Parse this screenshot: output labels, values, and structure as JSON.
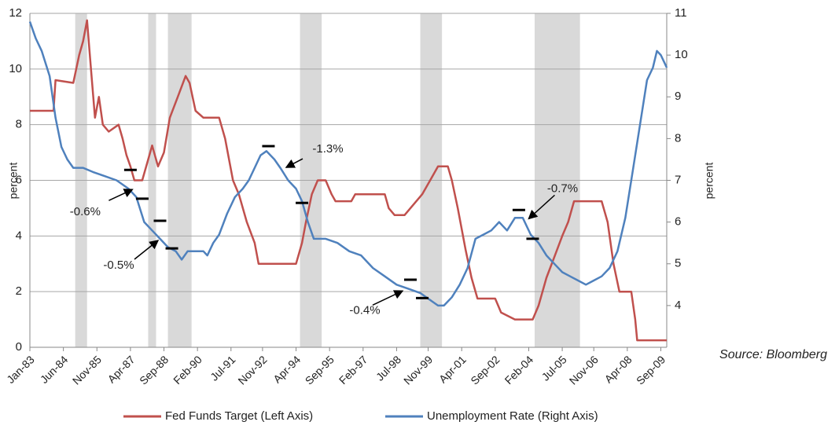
{
  "chart_data": {
    "type": "line",
    "ylabel": "percent",
    "y2label": "percent",
    "source": "Source: Bloomberg",
    "xlim": [
      "Jan-83",
      "Dec-09"
    ],
    "xticks": [
      "Jan-83",
      "Jun-84",
      "Nov-85",
      "Apr-87",
      "Sep-88",
      "Feb-90",
      "Jul-91",
      "Nov-92",
      "Apr-94",
      "Sep-95",
      "Feb-97",
      "Jul-98",
      "Nov-99",
      "Apr-01",
      "Sep-02",
      "Feb-04",
      "Jul-05",
      "Nov-06",
      "Apr-08",
      "Sep-09"
    ],
    "ylim": [
      0,
      12
    ],
    "yticks": [
      0,
      2,
      4,
      6,
      8,
      10,
      12
    ],
    "y2lim": [
      3,
      11
    ],
    "y2ticks": [
      4,
      5,
      6,
      7,
      8,
      9,
      10,
      11
    ],
    "grid": true,
    "shade_color": "#d9d9d9",
    "shaded_periods": [
      {
        "start": "Dec-84",
        "end": "Jun-85"
      },
      {
        "start": "Jan-88",
        "end": "May-88"
      },
      {
        "start": "Nov-88",
        "end": "Nov-89"
      },
      {
        "start": "Jun-94",
        "end": "May-95"
      },
      {
        "start": "Jul-99",
        "end": "Jun-00"
      },
      {
        "start": "May-04",
        "end": "Apr-06"
      }
    ],
    "series": [
      {
        "name": "Fed Funds Target (Left Axis)",
        "color": "#c0504d",
        "axis": "y",
        "x": [
          "Jan-83",
          "Jan-84",
          "Feb-84",
          "Nov-84",
          "Feb-85",
          "Apr-85",
          "Jun-85",
          "Aug-85",
          "Oct-85",
          "Dec-85",
          "Feb-86",
          "May-86",
          "Oct-86",
          "Dec-86",
          "Feb-87",
          "Apr-87",
          "Jun-87",
          "Oct-87",
          "Jan-88",
          "Mar-88",
          "Jun-88",
          "Sep-88",
          "Dec-88",
          "Apr-89",
          "Aug-89",
          "Oct-89",
          "Jan-90",
          "May-90",
          "Jan-91",
          "Apr-91",
          "Aug-91",
          "Nov-91",
          "Mar-92",
          "Jul-92",
          "Sep-92",
          "Dec-92",
          "Apr-94",
          "Jul-94",
          "Sep-94",
          "Dec-94",
          "Mar-95",
          "Jul-95",
          "Oct-95",
          "Dec-95",
          "Aug-96",
          "Oct-96",
          "Jan-98",
          "Mar-98",
          "Jun-98",
          "Nov-98",
          "Feb-99",
          "May-99",
          "Aug-99",
          "Dec-99",
          "Apr-00",
          "Sep-00",
          "Nov-00",
          "Feb-01",
          "Jun-01",
          "Sep-01",
          "Dec-01",
          "Sep-02",
          "Dec-02",
          "Jul-03",
          "Apr-04",
          "Jul-04",
          "Nov-04",
          "Mar-05",
          "Jul-05",
          "Oct-05",
          "Jan-06",
          "Mar-07",
          "Jun-07",
          "Sep-07",
          "Dec-07",
          "Jun-08",
          "Aug-08",
          "Sep-08",
          "Dec-09"
        ],
        "values": [
          8.5,
          8.5,
          9.6,
          9.5,
          10.5,
          11,
          11.75,
          10,
          8.25,
          9,
          8,
          7.75,
          8,
          7.5,
          6.9,
          6.5,
          6,
          6,
          6.75,
          7.25,
          6.5,
          7,
          8.25,
          9,
          9.75,
          9.5,
          8.5,
          8.25,
          8.25,
          7.5,
          6,
          5.5,
          4.5,
          3.75,
          3,
          3,
          3,
          3.75,
          4.5,
          5.5,
          6,
          6,
          5.5,
          5.25,
          5.25,
          5.5,
          5.5,
          5,
          4.75,
          4.75,
          5,
          5.25,
          5.5,
          6,
          6.5,
          6.5,
          6,
          5,
          3.5,
          2.5,
          1.75,
          1.75,
          1.25,
          1,
          1,
          1.5,
          2.5,
          3.25,
          4,
          4.5,
          5.25,
          5.25,
          4.5,
          3,
          2,
          2,
          1,
          0.25,
          0.25
        ]
      },
      {
        "name": "Unemployment Rate (Right Axis)",
        "color": "#4f81bd",
        "axis": "y2",
        "x": [
          "Jan-83",
          "Apr-83",
          "Jul-83",
          "Nov-83",
          "Feb-84",
          "May-84",
          "Aug-84",
          "Nov-84",
          "Apr-85",
          "Sep-85",
          "Mar-86",
          "Sep-86",
          "Mar-87",
          "Jul-87",
          "Nov-87",
          "Mar-88",
          "Jul-88",
          "Nov-88",
          "Mar-89",
          "Jun-89",
          "Sep-89",
          "Jan-90",
          "May-90",
          "Jul-90",
          "Oct-90",
          "Jan-91",
          "May-91",
          "Sep-91",
          "Jan-92",
          "Apr-92",
          "Jul-92",
          "Oct-92",
          "Jan-93",
          "May-93",
          "Aug-93",
          "Dec-93",
          "Apr-94",
          "Jul-94",
          "Oct-94",
          "Jan-95",
          "Apr-95",
          "Jul-95",
          "Jan-96",
          "Jul-96",
          "Jan-97",
          "Jul-97",
          "Jan-98",
          "Jul-98",
          "Jan-99",
          "Jul-99",
          "Jan-00",
          "Apr-00",
          "Jul-00",
          "Nov-00",
          "Mar-01",
          "Jul-01",
          "Nov-01",
          "Mar-02",
          "Jul-02",
          "Nov-02",
          "Mar-03",
          "Jul-03",
          "Nov-03",
          "Mar-04",
          "Jul-04",
          "Nov-04",
          "Mar-05",
          "Jul-05",
          "Nov-05",
          "Mar-06",
          "Jul-06",
          "Nov-06",
          "Mar-07",
          "Jul-07",
          "Nov-07",
          "Mar-08",
          "Jul-08",
          "Nov-08",
          "Feb-09",
          "May-09",
          "Jul-09",
          "Sep-09",
          "Nov-09",
          "Dec-09"
        ],
        "values": [
          10.8,
          10.4,
          10.1,
          9.5,
          8.5,
          7.8,
          7.5,
          7.3,
          7.3,
          7.2,
          7.1,
          7,
          6.8,
          6.6,
          6,
          5.8,
          5.6,
          5.4,
          5.3,
          5.1,
          5.3,
          5.3,
          5.3,
          5.2,
          5.5,
          5.7,
          6.2,
          6.6,
          6.8,
          7,
          7.3,
          7.6,
          7.7,
          7.5,
          7.3,
          7,
          6.8,
          6.5,
          6,
          5.6,
          5.6,
          5.6,
          5.5,
          5.3,
          5.2,
          4.9,
          4.7,
          4.5,
          4.4,
          4.3,
          4.1,
          4,
          4,
          4.2,
          4.5,
          4.9,
          5.6,
          5.7,
          5.8,
          6,
          5.8,
          6.1,
          6.1,
          5.7,
          5.5,
          5.2,
          5,
          4.8,
          4.7,
          4.6,
          4.5,
          4.6,
          4.7,
          4.9,
          5.3,
          6.1,
          7.3,
          8.5,
          9.4,
          9.7,
          10.1,
          10,
          9.8,
          9.7
        ]
      }
    ],
    "markers": [
      {
        "x": "Apr-87",
        "y": 7.25
      },
      {
        "x": "Oct-87",
        "y": 6.56
      },
      {
        "x": "Jul-88",
        "y": 6.03
      },
      {
        "x": "Jan-89",
        "y": 5.37
      },
      {
        "x": "Feb-93",
        "y": 7.82
      },
      {
        "x": "Jul-94",
        "y": 6.46
      },
      {
        "x": "Feb-99",
        "y": 4.62
      },
      {
        "x": "Aug-99",
        "y": 4.18
      },
      {
        "x": "Sep-03",
        "y": 6.29
      },
      {
        "x": "Apr-04",
        "y": 5.6
      }
    ],
    "annotations": [
      {
        "text": "-0.6%",
        "x": "May-87",
        "y": 6.78
      },
      {
        "text": "-0.5%",
        "x": "Jun-88",
        "y": 5.56
      },
      {
        "text": "-1.3%",
        "x": "Nov-93",
        "y": 7.31
      },
      {
        "text": "-0.4%",
        "x": "Oct-98",
        "y": 4.35
      },
      {
        "text": "-0.7%",
        "x": "Feb-04",
        "y": 6.08
      }
    ]
  }
}
